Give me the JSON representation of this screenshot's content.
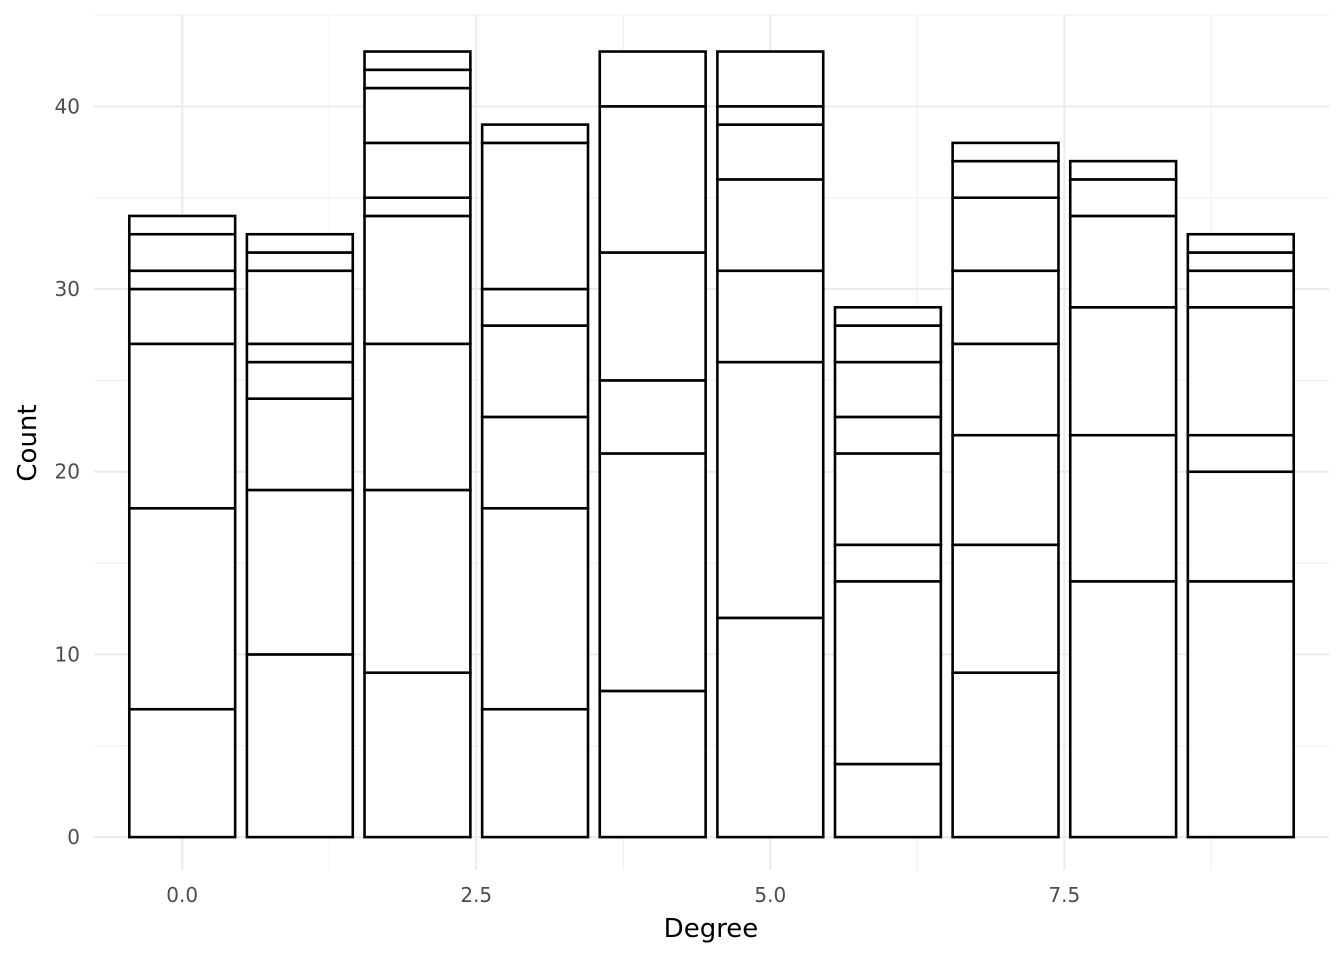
{
  "chart_data": {
    "type": "bar",
    "stacked": true,
    "title": "",
    "xlabel": "Degree",
    "ylabel": "Count",
    "xlim": [
      -0.75,
      9.75
    ],
    "ylim": [
      -1.8,
      45
    ],
    "x_ticks": [
      0,
      2.5,
      5,
      7.5
    ],
    "x_tick_labels": [
      "0.0",
      "2.5",
      "5.0",
      "7.5"
    ],
    "y_ticks": [
      0,
      10,
      20,
      30,
      40
    ],
    "y_tick_labels": [
      "0",
      "10",
      "20",
      "30",
      "40"
    ],
    "grid": true,
    "legend": "none",
    "fill": "#ffffff",
    "outline": "#000000",
    "bar_width": 0.9,
    "bars": [
      {
        "x": 0,
        "total": 34,
        "boundaries": [
          7,
          18,
          27,
          30,
          31,
          33
        ]
      },
      {
        "x": 1,
        "total": 33,
        "boundaries": [
          10,
          19,
          24,
          26,
          27,
          31,
          32
        ]
      },
      {
        "x": 2,
        "total": 43,
        "boundaries": [
          9,
          19,
          27,
          34,
          35,
          38,
          41,
          42
        ]
      },
      {
        "x": 3,
        "total": 39,
        "boundaries": [
          7,
          18,
          23,
          28,
          30,
          38
        ]
      },
      {
        "x": 4,
        "total": 43,
        "boundaries": [
          8,
          21,
          25,
          32,
          40
        ]
      },
      {
        "x": 5,
        "total": 43,
        "boundaries": [
          12,
          26,
          31,
          36,
          39,
          40
        ]
      },
      {
        "x": 6,
        "total": 29,
        "boundaries": [
          4,
          14,
          16,
          21,
          23,
          26,
          28
        ]
      },
      {
        "x": 7,
        "total": 38,
        "boundaries": [
          9,
          16,
          22,
          27,
          31,
          35,
          37
        ]
      },
      {
        "x": 8,
        "total": 37,
        "boundaries": [
          14,
          22,
          29,
          34,
          36
        ]
      },
      {
        "x": 9,
        "total": 33,
        "boundaries": [
          14,
          20,
          22,
          29,
          31,
          32
        ]
      }
    ]
  }
}
